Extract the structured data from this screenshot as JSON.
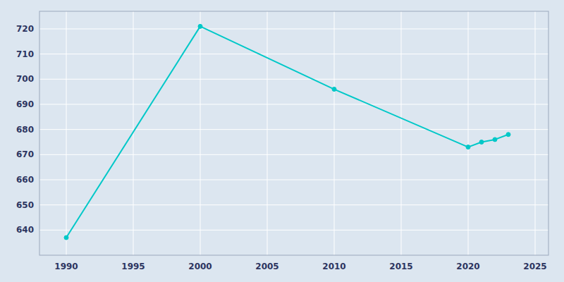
{
  "chart_data": {
    "type": "line",
    "x": [
      1990,
      2000,
      2010,
      2020,
      2021,
      2022,
      2023
    ],
    "values": [
      637,
      721,
      696,
      673,
      675,
      676,
      678
    ],
    "color": "#00C8C8",
    "marker": "circle",
    "xlim": [
      1988,
      2026
    ],
    "ylim": [
      630,
      727
    ],
    "xticks": [
      1990,
      1995,
      2000,
      2005,
      2010,
      2015,
      2020,
      2025
    ],
    "yticks": [
      640,
      650,
      660,
      670,
      680,
      690,
      700,
      710,
      720
    ],
    "grid": true
  }
}
